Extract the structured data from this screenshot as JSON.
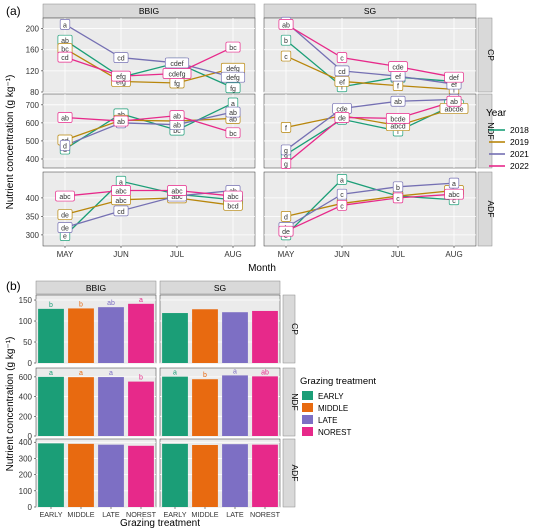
{
  "colors": {
    "y2018": "#1b9e77",
    "y2019": "#b8860b",
    "y2021": "#7570b3",
    "y2022": "#e7298a",
    "early": "#1b9e77",
    "middle": "#e86a10",
    "late": "#7d6fc4",
    "norest": "#e7298a",
    "strip": "#d9d9d9",
    "panel": "#ebebeb",
    "grid": "#ffffff",
    "frame": "#333333"
  },
  "chart_data": [
    {
      "type": "line",
      "panel_label": "(a)",
      "xlabel": "Month",
      "ylabel": "Nutrient concentration (g kg⁻¹)",
      "months": [
        "MAY",
        "JUN",
        "JUL",
        "AUG"
      ],
      "facet_columns": [
        "BBIG",
        "SG"
      ],
      "facet_rows": [
        {
          "name": "CP",
          "ylim": [
            80,
            220
          ],
          "ticks": [
            80,
            120,
            160,
            200
          ]
        },
        {
          "name": "NDF",
          "ylim": [
            350,
            760
          ],
          "ticks": [
            400,
            500,
            600,
            700
          ]
        },
        {
          "name": "ADF",
          "ylim": [
            270,
            470
          ],
          "ticks": [
            300,
            350,
            400
          ]
        }
      ],
      "legend": {
        "title": "Year",
        "position": "right",
        "entries": [
          {
            "label": "2018",
            "color": "#1b9e77"
          },
          {
            "label": "2019",
            "color": "#b8860b"
          },
          {
            "label": "2021",
            "color": "#7570b3"
          },
          {
            "label": "2022",
            "color": "#e7298a"
          }
        ]
      },
      "series": [
        {
          "row": 0,
          "col": 0,
          "year": "2018",
          "values": [
            178,
            108,
            135,
            88
          ],
          "letters": [
            "ab",
            "g",
            "cde",
            "fg"
          ]
        },
        {
          "row": 0,
          "col": 0,
          "year": "2019",
          "values": [
            162,
            100,
            97,
            125
          ],
          "letters": [
            "bc",
            "efg",
            "fg",
            "defg"
          ]
        },
        {
          "row": 0,
          "col": 0,
          "year": "2021",
          "values": [
            208,
            145,
            135,
            108
          ],
          "letters": [
            "a",
            "cd",
            "cdef",
            "defg"
          ]
        },
        {
          "row": 0,
          "col": 0,
          "year": "2022",
          "values": [
            146,
            110,
            115,
            165
          ],
          "letters": [
            "cd",
            "efg",
            "cdefg",
            "bc"
          ]
        },
        {
          "row": 0,
          "col": 1,
          "year": "2018",
          "values": [
            178,
            90,
            108,
            100
          ],
          "letters": [
            "b",
            "f",
            "de",
            "ef"
          ]
        },
        {
          "row": 0,
          "col": 1,
          "year": "2019",
          "values": [
            148,
            100,
            92,
            85
          ],
          "letters": [
            "c",
            "ef",
            "f",
            "f"
          ]
        },
        {
          "row": 0,
          "col": 1,
          "year": "2021",
          "values": [
            212,
            120,
            110,
            95
          ],
          "letters": [
            "a",
            "cd",
            "ef",
            "ef"
          ]
        },
        {
          "row": 0,
          "col": 1,
          "year": "2022",
          "values": [
            208,
            145,
            128,
            108
          ],
          "letters": [
            "ab",
            "c",
            "cde",
            "def"
          ]
        },
        {
          "row": 1,
          "col": 0,
          "year": "2018",
          "values": [
            455,
            650,
            560,
            710
          ],
          "letters": [
            "d",
            "ab",
            "bc",
            "a"
          ]
        },
        {
          "row": 1,
          "col": 0,
          "year": "2019",
          "values": [
            505,
            615,
            610,
            625
          ],
          "letters": [
            "cd",
            "ab",
            "ab",
            "ab"
          ]
        },
        {
          "row": 1,
          "col": 0,
          "year": "2021",
          "values": [
            475,
            600,
            590,
            660
          ],
          "letters": [
            "d",
            "b",
            "ab",
            "ab"
          ]
        },
        {
          "row": 1,
          "col": 0,
          "year": "2022",
          "values": [
            630,
            610,
            640,
            545
          ],
          "letters": [
            "ab",
            "ab",
            "ab",
            "bc"
          ]
        },
        {
          "row": 1,
          "col": 1,
          "year": "2018",
          "values": [
            425,
            620,
            555,
            700
          ],
          "letters": [
            "g",
            "e",
            "f",
            "abc"
          ]
        },
        {
          "row": 1,
          "col": 1,
          "year": "2019",
          "values": [
            575,
            640,
            585,
            680
          ],
          "letters": [
            "f",
            "de",
            "abcd",
            "abcde"
          ]
        },
        {
          "row": 1,
          "col": 1,
          "year": "2021",
          "values": [
            450,
            680,
            720,
            730
          ],
          "letters": [
            "g",
            "cde",
            "ab",
            "a"
          ]
        },
        {
          "row": 1,
          "col": 1,
          "year": "2022",
          "values": [
            375,
            630,
            625,
            720
          ],
          "letters": [
            "g",
            "de",
            "bcde",
            "ab"
          ]
        },
        {
          "row": 2,
          "col": 0,
          "year": "2018",
          "values": [
            298,
            445,
            410,
            395
          ],
          "letters": [
            "e",
            "a",
            "abc",
            "abc"
          ]
        },
        {
          "row": 2,
          "col": 0,
          "year": "2019",
          "values": [
            355,
            395,
            400,
            380
          ],
          "letters": [
            "de",
            "abc",
            "abc",
            "bcd"
          ]
        },
        {
          "row": 2,
          "col": 0,
          "year": "2021",
          "values": [
            320,
            365,
            405,
            420
          ],
          "letters": [
            "de",
            "cd",
            "abc",
            "ab"
          ]
        },
        {
          "row": 2,
          "col": 0,
          "year": "2022",
          "values": [
            405,
            420,
            420,
            405
          ],
          "letters": [
            "abc",
            "abc",
            "abc",
            "abc"
          ]
        },
        {
          "row": 2,
          "col": 1,
          "year": "2018",
          "values": [
            300,
            450,
            405,
            395
          ],
          "letters": [
            "e",
            "a",
            "c",
            "c"
          ]
        },
        {
          "row": 2,
          "col": 1,
          "year": "2019",
          "values": [
            350,
            385,
            405,
            420
          ],
          "letters": [
            "d",
            "c",
            "c",
            "abc"
          ]
        },
        {
          "row": 2,
          "col": 1,
          "year": "2021",
          "values": [
            320,
            410,
            430,
            440
          ],
          "letters": [
            "de",
            "c",
            "b",
            "a"
          ]
        },
        {
          "row": 2,
          "col": 1,
          "year": "2022",
          "values": [
            310,
            380,
            400,
            410
          ],
          "letters": [
            "de",
            "c",
            "c",
            "abc"
          ]
        }
      ]
    },
    {
      "type": "bar",
      "panel_label": "(b)",
      "xlabel": "Grazing treatment",
      "ylabel": "Nutrient concentration (g kg⁻¹)",
      "categories": [
        "EARLY",
        "MIDDLE",
        "LATE",
        "NOREST"
      ],
      "facet_columns": [
        "BBIG",
        "SG"
      ],
      "facet_rows": [
        {
          "name": "CP",
          "ylim": [
            0,
            162
          ],
          "ticks": [
            0,
            50,
            100,
            150
          ]
        },
        {
          "name": "NDF",
          "ylim": [
            0,
            690
          ],
          "ticks": [
            0,
            200,
            400,
            600
          ]
        },
        {
          "name": "ADF",
          "ylim": [
            0,
            420
          ],
          "ticks": [
            0,
            100,
            200,
            300,
            400
          ]
        }
      ],
      "legend": {
        "title": "Grazing treatment",
        "position": "right",
        "entries": [
          {
            "label": "EARLY",
            "color": "#1b9e77"
          },
          {
            "label": "MIDDLE",
            "color": "#e86a10"
          },
          {
            "label": "LATE",
            "color": "#7d6fc4"
          },
          {
            "label": "NOREST",
            "color": "#e7298a"
          }
        ]
      },
      "panels": [
        {
          "row": 0,
          "col": 0,
          "values": [
            129,
            130,
            133,
            141
          ],
          "letters": [
            "b",
            "b",
            "ab",
            "a"
          ]
        },
        {
          "row": 0,
          "col": 1,
          "values": [
            119,
            128,
            121,
            124
          ],
          "letters": [
            "",
            "",
            "",
            ""
          ]
        },
        {
          "row": 1,
          "col": 0,
          "values": [
            600,
            597,
            598,
            552
          ],
          "letters": [
            "a",
            "a",
            "a",
            "b"
          ]
        },
        {
          "row": 1,
          "col": 1,
          "values": [
            602,
            576,
            615,
            605
          ],
          "letters": [
            "a",
            "b",
            "a",
            "ab"
          ]
        },
        {
          "row": 2,
          "col": 0,
          "values": [
            393,
            390,
            385,
            378
          ],
          "letters": [
            "",
            "",
            "",
            ""
          ]
        },
        {
          "row": 2,
          "col": 1,
          "values": [
            390,
            383,
            388,
            385
          ],
          "letters": [
            "",
            "",
            "",
            ""
          ]
        }
      ]
    }
  ]
}
